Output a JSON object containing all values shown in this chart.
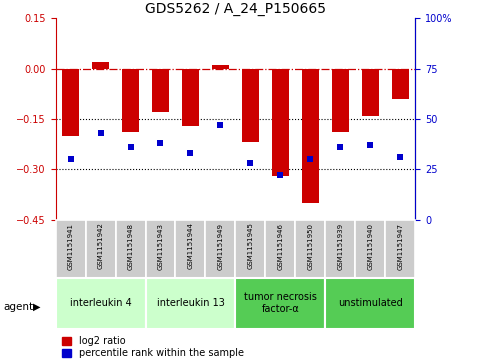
{
  "title": "GDS5262 / A_24_P150665",
  "samples": [
    "GSM1151941",
    "GSM1151942",
    "GSM1151948",
    "GSM1151943",
    "GSM1151944",
    "GSM1151949",
    "GSM1151945",
    "GSM1151946",
    "GSM1151950",
    "GSM1151939",
    "GSM1151940",
    "GSM1151947"
  ],
  "log2_ratio": [
    -0.2,
    0.02,
    -0.19,
    -0.13,
    -0.17,
    0.01,
    -0.22,
    -0.32,
    -0.4,
    -0.19,
    -0.14,
    -0.09
  ],
  "percentile_rank": [
    30,
    43,
    36,
    38,
    33,
    47,
    28,
    22,
    30,
    36,
    37,
    31
  ],
  "ylim_left": [
    -0.45,
    0.15
  ],
  "ylim_right": [
    0,
    100
  ],
  "yticks_left": [
    0.15,
    0.0,
    -0.15,
    -0.3,
    -0.45
  ],
  "yticks_right": [
    100,
    75,
    50,
    25,
    0
  ],
  "groups": [
    {
      "label": "interleukin 4",
      "indices": [
        0,
        1,
        2
      ],
      "color": "#ccffcc"
    },
    {
      "label": "interleukin 13",
      "indices": [
        3,
        4,
        5
      ],
      "color": "#ccffcc"
    },
    {
      "label": "tumor necrosis\nfactor-α",
      "indices": [
        6,
        7,
        8
      ],
      "color": "#55cc55"
    },
    {
      "label": "unstimulated",
      "indices": [
        9,
        10,
        11
      ],
      "color": "#55cc55"
    }
  ],
  "bar_color": "#cc0000",
  "dot_color": "#0000cc",
  "hline_color": "#cc0000",
  "dotted_line_color": "#000000",
  "bg_color": "#ffffff",
  "sample_box_color": "#cccccc",
  "sample_box_edge": "#ffffff",
  "title_color": "#000000",
  "title_fontsize": 10,
  "bar_width": 0.55
}
